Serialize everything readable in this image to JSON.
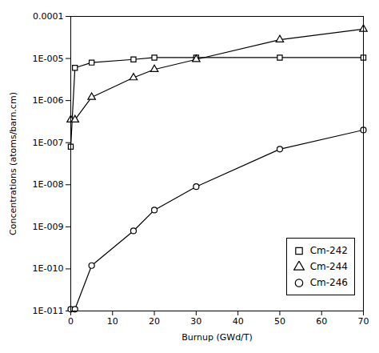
{
  "chart_data": {
    "type": "line",
    "xlabel": "Burnup (GWd/T)",
    "ylabel": "Concentrations (atoms/barn.cm)",
    "log": "y",
    "x": [
      0,
      1,
      5,
      15,
      20,
      30,
      50,
      70
    ],
    "series": [
      {
        "name": "Cm-242",
        "color": "#000000",
        "marker": "square",
        "values": [
          8e-08,
          6e-06,
          8e-06,
          9.5e-06,
          1.05e-05,
          1.05e-05,
          1.05e-05,
          1.05e-05
        ]
      },
      {
        "name": "Cm-244",
        "color": "#000000",
        "marker": "triangle",
        "values": [
          3.5e-07,
          3.5e-07,
          1.2e-06,
          3.5e-06,
          5.5e-06,
          9.5e-06,
          2.8e-05,
          5e-05
        ]
      },
      {
        "name": "Cm-246",
        "color": "#000000",
        "marker": "circle",
        "values": [
          1.1e-11,
          1.1e-11,
          1.2e-10,
          8e-10,
          2.5e-09,
          9e-09,
          7e-08,
          2e-07
        ]
      }
    ],
    "xlim": [
      0,
      70
    ],
    "xticks": [
      0,
      10,
      20,
      30,
      40,
      50,
      60,
      70
    ],
    "ylim": [
      1e-11,
      0.0001
    ],
    "yticks": [
      {
        "value": 1e-11,
        "label": "1E-011"
      },
      {
        "value": 1e-10,
        "label": "1E-010"
      },
      {
        "value": 1e-09,
        "label": "1E-009"
      },
      {
        "value": 1e-08,
        "label": "1E-008"
      },
      {
        "value": 1e-07,
        "label": "1E-007"
      },
      {
        "value": 1e-06,
        "label": "1E-006"
      },
      {
        "value": 1e-05,
        "label": "1E-005"
      },
      {
        "value": 0.0001,
        "label": "0.0001"
      }
    ],
    "grid": false,
    "legend": "lower right"
  }
}
